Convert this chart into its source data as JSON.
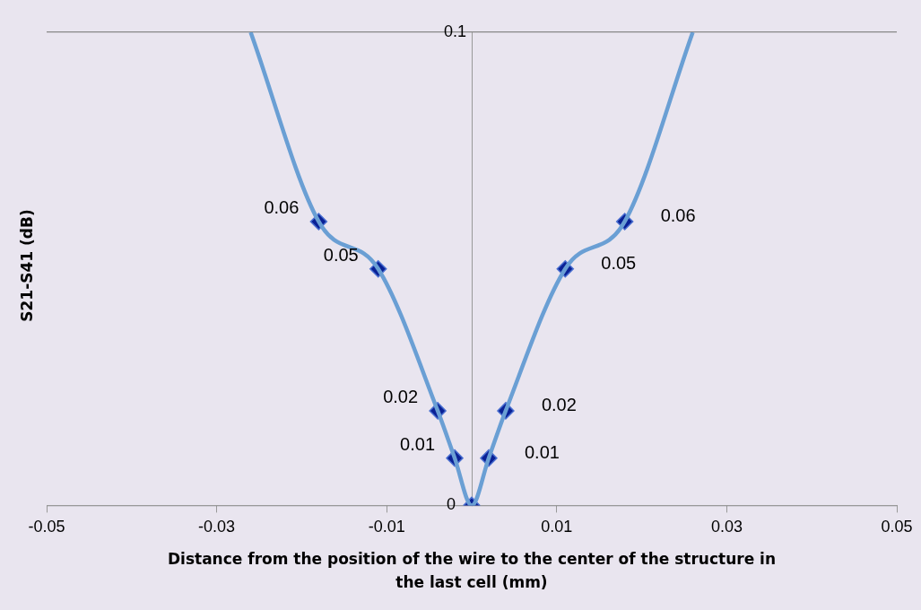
{
  "chart_data": {
    "type": "scatter",
    "xlabel": "Distance from the position of the wire to the center of the structure in the last cell (mm)",
    "ylabel": "S21-S41 (dB)",
    "xlim": [
      -0.05,
      0.05
    ],
    "xticks": [
      -0.05,
      -0.03,
      -0.01,
      0.01,
      0.03,
      0.05
    ],
    "ylim": [
      0,
      0.1
    ],
    "yticks": [
      0,
      0.1
    ],
    "grid": "y",
    "legend": false,
    "series": [
      {
        "type": "line",
        "color": "#6a9fd4",
        "marker": "none",
        "x": [
          -0.026,
          -0.018,
          -0.011,
          -0.004,
          -0.002,
          0,
          0.002,
          0.004,
          0.011,
          0.018,
          0.026
        ],
        "values": [
          0.1,
          0.06,
          0.05,
          0.02,
          0.01,
          0,
          0.01,
          0.02,
          0.05,
          0.06,
          0.1
        ]
      },
      {
        "type": "scatter",
        "color": "#0a2196",
        "marker": "diamond",
        "x": [
          -0.018,
          -0.011,
          -0.004,
          -0.002,
          0,
          0.002,
          0.004,
          0.011,
          0.018
        ],
        "values": [
          0.06,
          0.05,
          0.02,
          0.01,
          0,
          0.01,
          0.02,
          0.05,
          0.06
        ],
        "value_labels": [
          "0.06",
          "0.05",
          "0.02",
          "0.01",
          null,
          "0.01",
          "0.02",
          "0.05",
          "0.06"
        ]
      }
    ]
  }
}
